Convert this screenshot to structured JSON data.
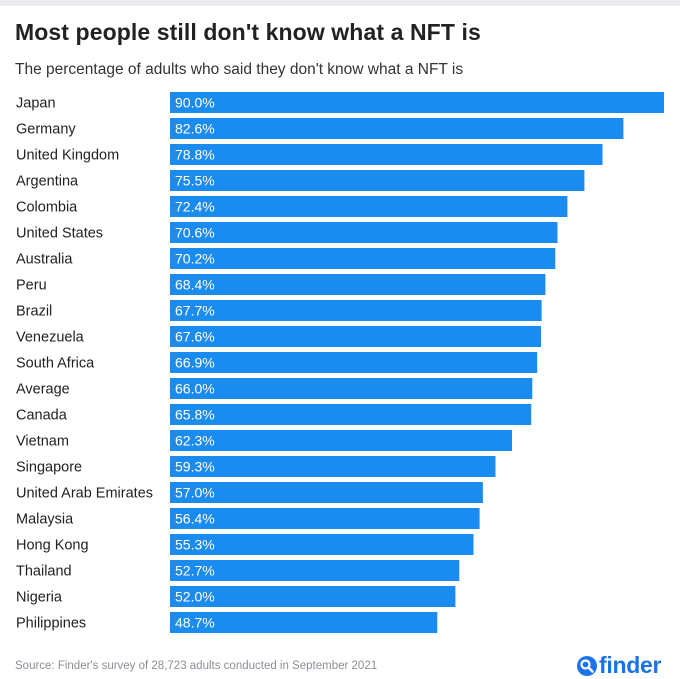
{
  "header": {
    "title": "Most people still don't know what a NFT is",
    "subtitle": "The percentage of adults who said they don't know what a NFT is"
  },
  "footer": {
    "source": "Source: Finder's survey of 28,723 adults conducted in September 2021",
    "brand": "finder",
    "brand_icon": "finder-logo-magnifier-icon"
  },
  "colors": {
    "bar": "#1a8cf0",
    "value_text": "#ffffff",
    "brand": "#1a74e8"
  },
  "chart_data": {
    "type": "bar",
    "orientation": "horizontal",
    "title": "Most people still don't know what a NFT is",
    "subtitle": "The percentage of adults who said they don't know what a NFT is",
    "categories": [
      "Japan",
      "Germany",
      "United Kingdom",
      "Argentina",
      "Colombia",
      "United States",
      "Australia",
      "Peru",
      "Brazil",
      "Venezuela",
      "South Africa",
      "Average",
      "Canada",
      "Vietnam",
      "Singapore",
      "United Arab Emirates",
      "Malaysia",
      "Hong Kong",
      "Thailand",
      "Nigeria",
      "Philippines"
    ],
    "values": [
      90.0,
      82.6,
      78.8,
      75.5,
      72.4,
      70.6,
      70.2,
      68.4,
      67.7,
      67.6,
      66.9,
      66.0,
      65.8,
      62.3,
      59.3,
      57.0,
      56.4,
      55.3,
      52.7,
      52.0,
      48.7
    ],
    "value_labels": [
      "90.0%",
      "82.6%",
      "78.8%",
      "75.5%",
      "72.4%",
      "70.6%",
      "70.2%",
      "68.4%",
      "67.7%",
      "67.6%",
      "66.9%",
      "66.0%",
      "65.8%",
      "62.3%",
      "59.3%",
      "57.0%",
      "56.4%",
      "55.3%",
      "52.7%",
      "52.0%",
      "48.7%"
    ],
    "xlim": [
      0,
      90
    ],
    "grid": false,
    "legend": "none"
  }
}
